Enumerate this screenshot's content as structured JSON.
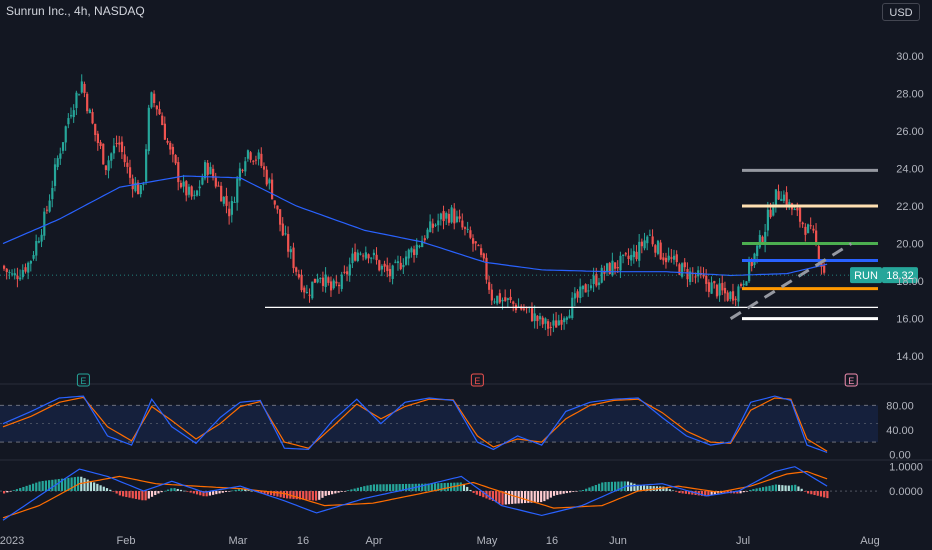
{
  "header": {
    "title": "Sunrun Inc., 4h, NASDAQ",
    "currency": "USD"
  },
  "colors": {
    "background": "#131722",
    "up_candle": "#26a69a",
    "down_candle": "#ef5350",
    "moving_average": "#2962ff",
    "stoch_k": "#2962ff",
    "stoch_d": "#ff6d00",
    "macd_line": "#2962ff",
    "signal_line": "#ff6d00",
    "last_price_tag": "#26a69a"
  },
  "chart_data": [
    {
      "type": "candlestick",
      "panel": "price",
      "title": "Sunrun Inc., 4h, NASDAQ",
      "ylim": [
        13.0,
        31.0
      ],
      "y_ticks": [
        "30.00",
        "28.00",
        "26.00",
        "24.00",
        "22.00",
        "20.00",
        "18.00",
        "16.00",
        "14.00"
      ],
      "x_ticks": [
        "2023",
        "Feb",
        "Mar",
        "16",
        "Apr",
        "May",
        "16",
        "Jun",
        "Jul",
        "Aug"
      ],
      "last_price": {
        "symbol": "RUN",
        "value": "18.32"
      },
      "earnings_markers": [
        "E",
        "E",
        "E"
      ],
      "price_path": [
        [
          "Jan 1",
          18.8
        ],
        [
          "Jan 4",
          18.2
        ],
        [
          "Jan 8",
          19.0
        ],
        [
          "Jan 12",
          21.5
        ],
        [
          "Jan 15",
          24.5
        ],
        [
          "Jan 18",
          27.0
        ],
        [
          "Jan 21",
          28.6
        ],
        [
          "Jan 24",
          26.0
        ],
        [
          "Jan 27",
          24.2
        ],
        [
          "Jan 30",
          25.5
        ],
        [
          "Feb 2",
          23.5
        ],
        [
          "Feb 5",
          22.6
        ],
        [
          "Feb 7",
          27.8
        ],
        [
          "Feb 9",
          27.2
        ],
        [
          "Feb 12",
          24.8
        ],
        [
          "Feb 15",
          23.0
        ],
        [
          "Feb 18",
          22.3
        ],
        [
          "Feb 21",
          24.2
        ],
        [
          "Feb 24",
          23.0
        ],
        [
          "Feb 27",
          21.6
        ],
        [
          "Mar 1",
          23.7
        ],
        [
          "Mar 3",
          25.0
        ],
        [
          "Mar 6",
          24.5
        ],
        [
          "Mar 9",
          23.0
        ],
        [
          "Mar 12",
          20.5
        ],
        [
          "Mar 15",
          18.8
        ],
        [
          "Mar 18",
          17.3
        ],
        [
          "Mar 21",
          18.5
        ],
        [
          "Mar 24",
          17.5
        ],
        [
          "Mar 27",
          18.0
        ],
        [
          "Mar 30",
          19.5
        ],
        [
          "Apr 2",
          19.7
        ],
        [
          "Apr 5",
          18.8
        ],
        [
          "Apr 8",
          18.3
        ],
        [
          "Apr 11",
          19.2
        ],
        [
          "Apr 14",
          19.8
        ],
        [
          "Apr 17",
          20.6
        ],
        [
          "Apr 20",
          21.3
        ],
        [
          "Apr 23",
          21.6
        ],
        [
          "Apr 26",
          20.7
        ],
        [
          "Apr 29",
          19.8
        ],
        [
          "May 1",
          18.8
        ],
        [
          "May 3",
          17.2
        ],
        [
          "May 6",
          17.0
        ],
        [
          "May 9",
          16.7
        ],
        [
          "May 12",
          16.4
        ],
        [
          "May 15",
          15.8
        ],
        [
          "May 18",
          15.5
        ],
        [
          "May 21",
          16.3
        ],
        [
          "May 24",
          17.0
        ],
        [
          "May 27",
          17.8
        ],
        [
          "May 30",
          18.3
        ],
        [
          "Jun 2",
          18.8
        ],
        [
          "Jun 5",
          19.0
        ],
        [
          "Jun 8",
          19.5
        ],
        [
          "Jun 11",
          20.5
        ],
        [
          "Jun 14",
          19.5
        ],
        [
          "Jun 17",
          19.0
        ],
        [
          "Jun 20",
          18.5
        ],
        [
          "Jun 23",
          18.2
        ],
        [
          "Jun 26",
          17.8
        ],
        [
          "Jun 29",
          17.4
        ],
        [
          "Jul 1",
          17.2
        ],
        [
          "Jul 3",
          17.5
        ],
        [
          "Jul 6",
          18.7
        ],
        [
          "Jul 9",
          20.2
        ],
        [
          "Jul 12",
          22.3
        ],
        [
          "Jul 14",
          22.8
        ],
        [
          "Jul 16",
          22.0
        ],
        [
          "Jul 19",
          21.2
        ],
        [
          "Jul 22",
          20.3
        ],
        [
          "Jul 25",
          18.3
        ]
      ],
      "moving_average": [
        [
          "Jan 1",
          20.0
        ],
        [
          "Jan 15",
          21.3
        ],
        [
          "Jan 30",
          23.0
        ],
        [
          "Feb 15",
          23.6
        ],
        [
          "Mar 1",
          23.5
        ],
        [
          "Mar 15",
          22.0
        ],
        [
          "Apr 1",
          20.7
        ],
        [
          "Apr 15",
          20.1
        ],
        [
          "May 1",
          19.0
        ],
        [
          "May 15",
          18.6
        ],
        [
          "Jun 1",
          18.5
        ],
        [
          "Jun 15",
          18.5
        ],
        [
          "Jul 1",
          18.3
        ],
        [
          "Jul 15",
          18.4
        ],
        [
          "Jul 25",
          18.9
        ]
      ],
      "horizontal_levels": [
        {
          "value": 23.9,
          "color": "#9598a1"
        },
        {
          "value": 22.0,
          "color": "#ffe0b2"
        },
        {
          "value": 20.0,
          "color": "#4caf50"
        },
        {
          "value": 19.1,
          "color": "#2962ff"
        },
        {
          "value": 17.6,
          "color": "#ff9800"
        },
        {
          "value": 16.0,
          "color": "#ffffff"
        }
      ],
      "support_line": {
        "value": 16.6,
        "color": "#ffffff"
      },
      "trend_line": {
        "from": [
          "Jul 1",
          16.0
        ],
        "to": [
          "Jul 31",
          20.0
        ],
        "color": "#9598a1",
        "dashed": true
      }
    },
    {
      "type": "line",
      "panel": "stochastic",
      "ylim": [
        -6,
        105
      ],
      "y_ticks": [
        "80.00",
        "40.00",
        "0.00"
      ],
      "band": [
        20,
        80
      ],
      "series_k": [
        [
          "Jan 1",
          50
        ],
        [
          "Jan 8",
          70
        ],
        [
          "Jan 15",
          92
        ],
        [
          "Jan 21",
          95
        ],
        [
          "Jan 27",
          30
        ],
        [
          "Feb 2",
          15
        ],
        [
          "Feb 7",
          90
        ],
        [
          "Feb 12",
          45
        ],
        [
          "Feb 18",
          18
        ],
        [
          "Feb 24",
          60
        ],
        [
          "Mar 1",
          85
        ],
        [
          "Mar 6",
          88
        ],
        [
          "Mar 12",
          10
        ],
        [
          "Mar 18",
          8
        ],
        [
          "Mar 24",
          55
        ],
        [
          "Mar 30",
          90
        ],
        [
          "Apr 5",
          50
        ],
        [
          "Apr 11",
          85
        ],
        [
          "Apr 17",
          92
        ],
        [
          "Apr 23",
          88
        ],
        [
          "Apr 29",
          20
        ],
        [
          "May 3",
          8
        ],
        [
          "May 9",
          30
        ],
        [
          "May 15",
          15
        ],
        [
          "May 21",
          70
        ],
        [
          "May 27",
          85
        ],
        [
          "Jun 2",
          90
        ],
        [
          "Jun 8",
          92
        ],
        [
          "Jun 14",
          60
        ],
        [
          "Jun 20",
          30
        ],
        [
          "Jun 26",
          15
        ],
        [
          "Jul 1",
          20
        ],
        [
          "Jul 6",
          85
        ],
        [
          "Jul 12",
          95
        ],
        [
          "Jul 16",
          88
        ],
        [
          "Jul 20",
          15
        ],
        [
          "Jul 25",
          3
        ]
      ],
      "series_d": [
        [
          "Jan 1",
          45
        ],
        [
          "Jan 8",
          62
        ],
        [
          "Jan 15",
          85
        ],
        [
          "Jan 21",
          93
        ],
        [
          "Jan 27",
          45
        ],
        [
          "Feb 2",
          22
        ],
        [
          "Feb 7",
          78
        ],
        [
          "Feb 12",
          55
        ],
        [
          "Feb 18",
          25
        ],
        [
          "Feb 24",
          50
        ],
        [
          "Mar 1",
          78
        ],
        [
          "Mar 6",
          86
        ],
        [
          "Mar 12",
          20
        ],
        [
          "Mar 18",
          10
        ],
        [
          "Mar 24",
          45
        ],
        [
          "Mar 30",
          82
        ],
        [
          "Apr 5",
          58
        ],
        [
          "Apr 11",
          78
        ],
        [
          "Apr 17",
          90
        ],
        [
          "Apr 23",
          89
        ],
        [
          "Apr 29",
          30
        ],
        [
          "May 3",
          12
        ],
        [
          "May 9",
          25
        ],
        [
          "May 15",
          20
        ],
        [
          "May 21",
          58
        ],
        [
          "May 27",
          80
        ],
        [
          "Jun 2",
          88
        ],
        [
          "Jun 8",
          90
        ],
        [
          "Jun 14",
          68
        ],
        [
          "Jun 20",
          38
        ],
        [
          "Jun 26",
          20
        ],
        [
          "Jul 1",
          18
        ],
        [
          "Jul 6",
          72
        ],
        [
          "Jul 12",
          92
        ],
        [
          "Jul 16",
          90
        ],
        [
          "Jul 20",
          25
        ],
        [
          "Jul 25",
          5
        ]
      ]
    },
    {
      "type": "macd",
      "panel": "macd",
      "ylim": [
        -1.6,
        1.15
      ],
      "y_ticks": [
        "1.0000",
        "0.0000"
      ],
      "macd": [
        [
          "Jan 1",
          -1.2
        ],
        [
          "Jan 10",
          -0.2
        ],
        [
          "Jan 20",
          0.9
        ],
        [
          "Jan 27",
          0.6
        ],
        [
          "Feb 5",
          0.0
        ],
        [
          "Feb 12",
          0.4
        ],
        [
          "Feb 20",
          -0.05
        ],
        [
          "Mar 1",
          0.2
        ],
        [
          "Mar 12",
          -0.4
        ],
        [
          "Mar 20",
          -0.9
        ],
        [
          "Apr 1",
          -0.3
        ],
        [
          "Apr 15",
          0.2
        ],
        [
          "Apr 25",
          0.6
        ],
        [
          "May 5",
          -0.6
        ],
        [
          "May 15",
          -1.0
        ],
        [
          "May 25",
          -0.6
        ],
        [
          "Jun 5",
          0.2
        ],
        [
          "Jun 14",
          0.3
        ],
        [
          "Jun 25",
          -0.2
        ],
        [
          "Jul 3",
          0.0
        ],
        [
          "Jul 12",
          0.8
        ],
        [
          "Jul 17",
          1.0
        ],
        [
          "Jul 25",
          0.2
        ]
      ],
      "signal": [
        [
          "Jan 1",
          -1.1
        ],
        [
          "Jan 10",
          -0.6
        ],
        [
          "Jan 20",
          0.3
        ],
        [
          "Jan 30",
          0.6
        ],
        [
          "Feb 8",
          0.3
        ],
        [
          "Feb 18",
          0.2
        ],
        [
          "Mar 1",
          0.1
        ],
        [
          "Mar 12",
          -0.1
        ],
        [
          "Mar 22",
          -0.6
        ],
        [
          "Apr 3",
          -0.5
        ],
        [
          "Apr 15",
          -0.1
        ],
        [
          "Apr 28",
          0.35
        ],
        [
          "May 8",
          -0.2
        ],
        [
          "May 18",
          -0.7
        ],
        [
          "May 30",
          -0.6
        ],
        [
          "Jun 8",
          0.0
        ],
        [
          "Jun 18",
          0.2
        ],
        [
          "Jun 28",
          -0.05
        ],
        [
          "Jul 6",
          0.2
        ],
        [
          "Jul 15",
          0.7
        ],
        [
          "Jul 20",
          0.8
        ],
        [
          "Jul 25",
          0.5
        ]
      ]
    }
  ]
}
